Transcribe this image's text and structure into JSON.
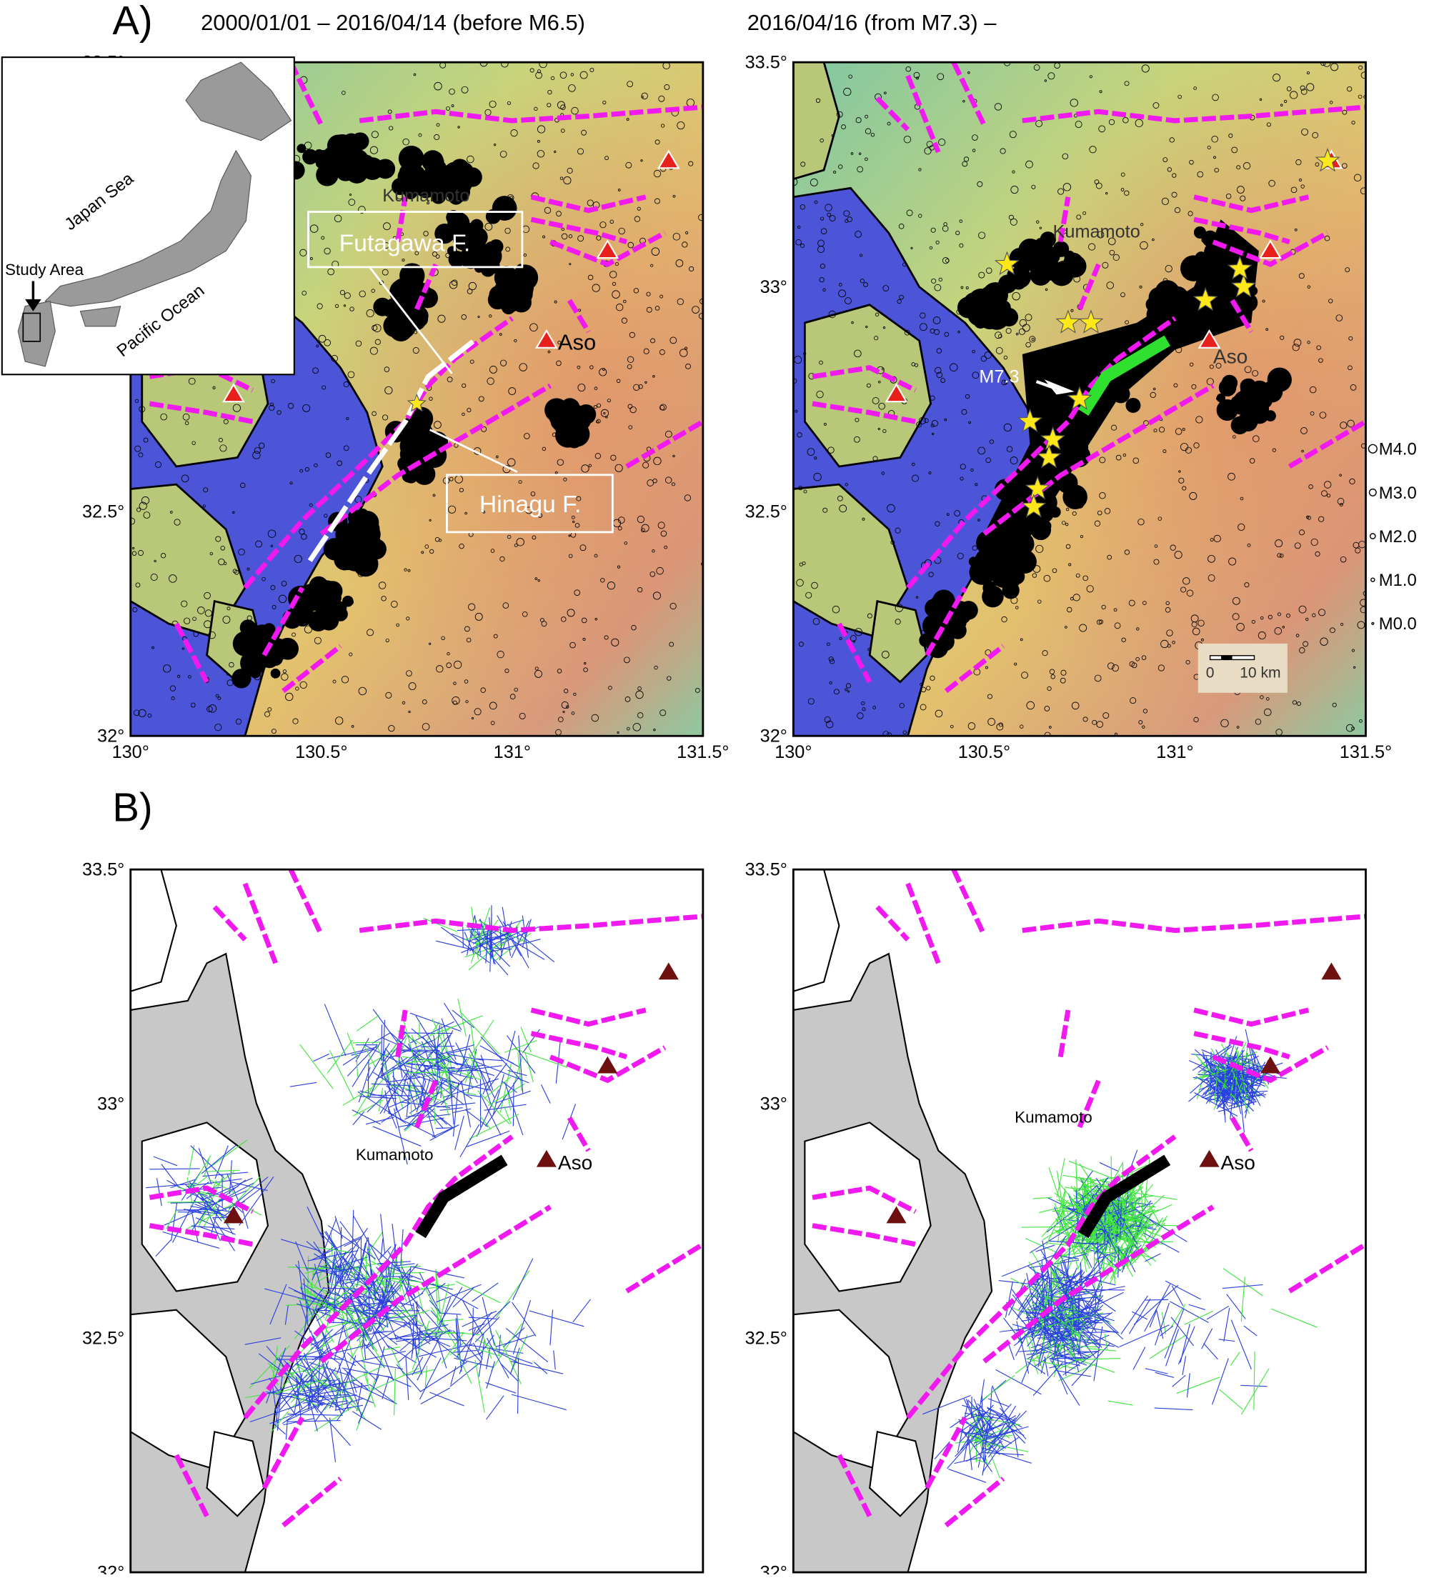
{
  "panel_a": {
    "label": "A)",
    "titles": [
      "2000/01/01 – 2016/04/14 (before M6.5)",
      "2016/04/16 (from M7.3)  –"
    ]
  },
  "panel_b": {
    "label": "B)"
  },
  "axes": {
    "x_labels": [
      "130°",
      "130.5°",
      "131°",
      "131.5°"
    ],
    "y_labels": [
      "32°",
      "32.5°",
      "33°",
      "33.5°"
    ]
  },
  "inset": {
    "japan_sea": "Japan Sea",
    "study_area": "Study Area",
    "pacific_ocean": "Pacific Ocean"
  },
  "places": {
    "kumamoto": "Kumamoto",
    "aso": "Aso",
    "futagawa": "Futagawa F.",
    "hinagu": "Hinagu F.",
    "mainshock": "M7.3"
  },
  "scale_bar": {
    "zero": "0",
    "length": "10 km"
  },
  "magnitude_legend": [
    "M4.0",
    "M3.0",
    "M2.0",
    "M1.0",
    "M0.0"
  ]
}
